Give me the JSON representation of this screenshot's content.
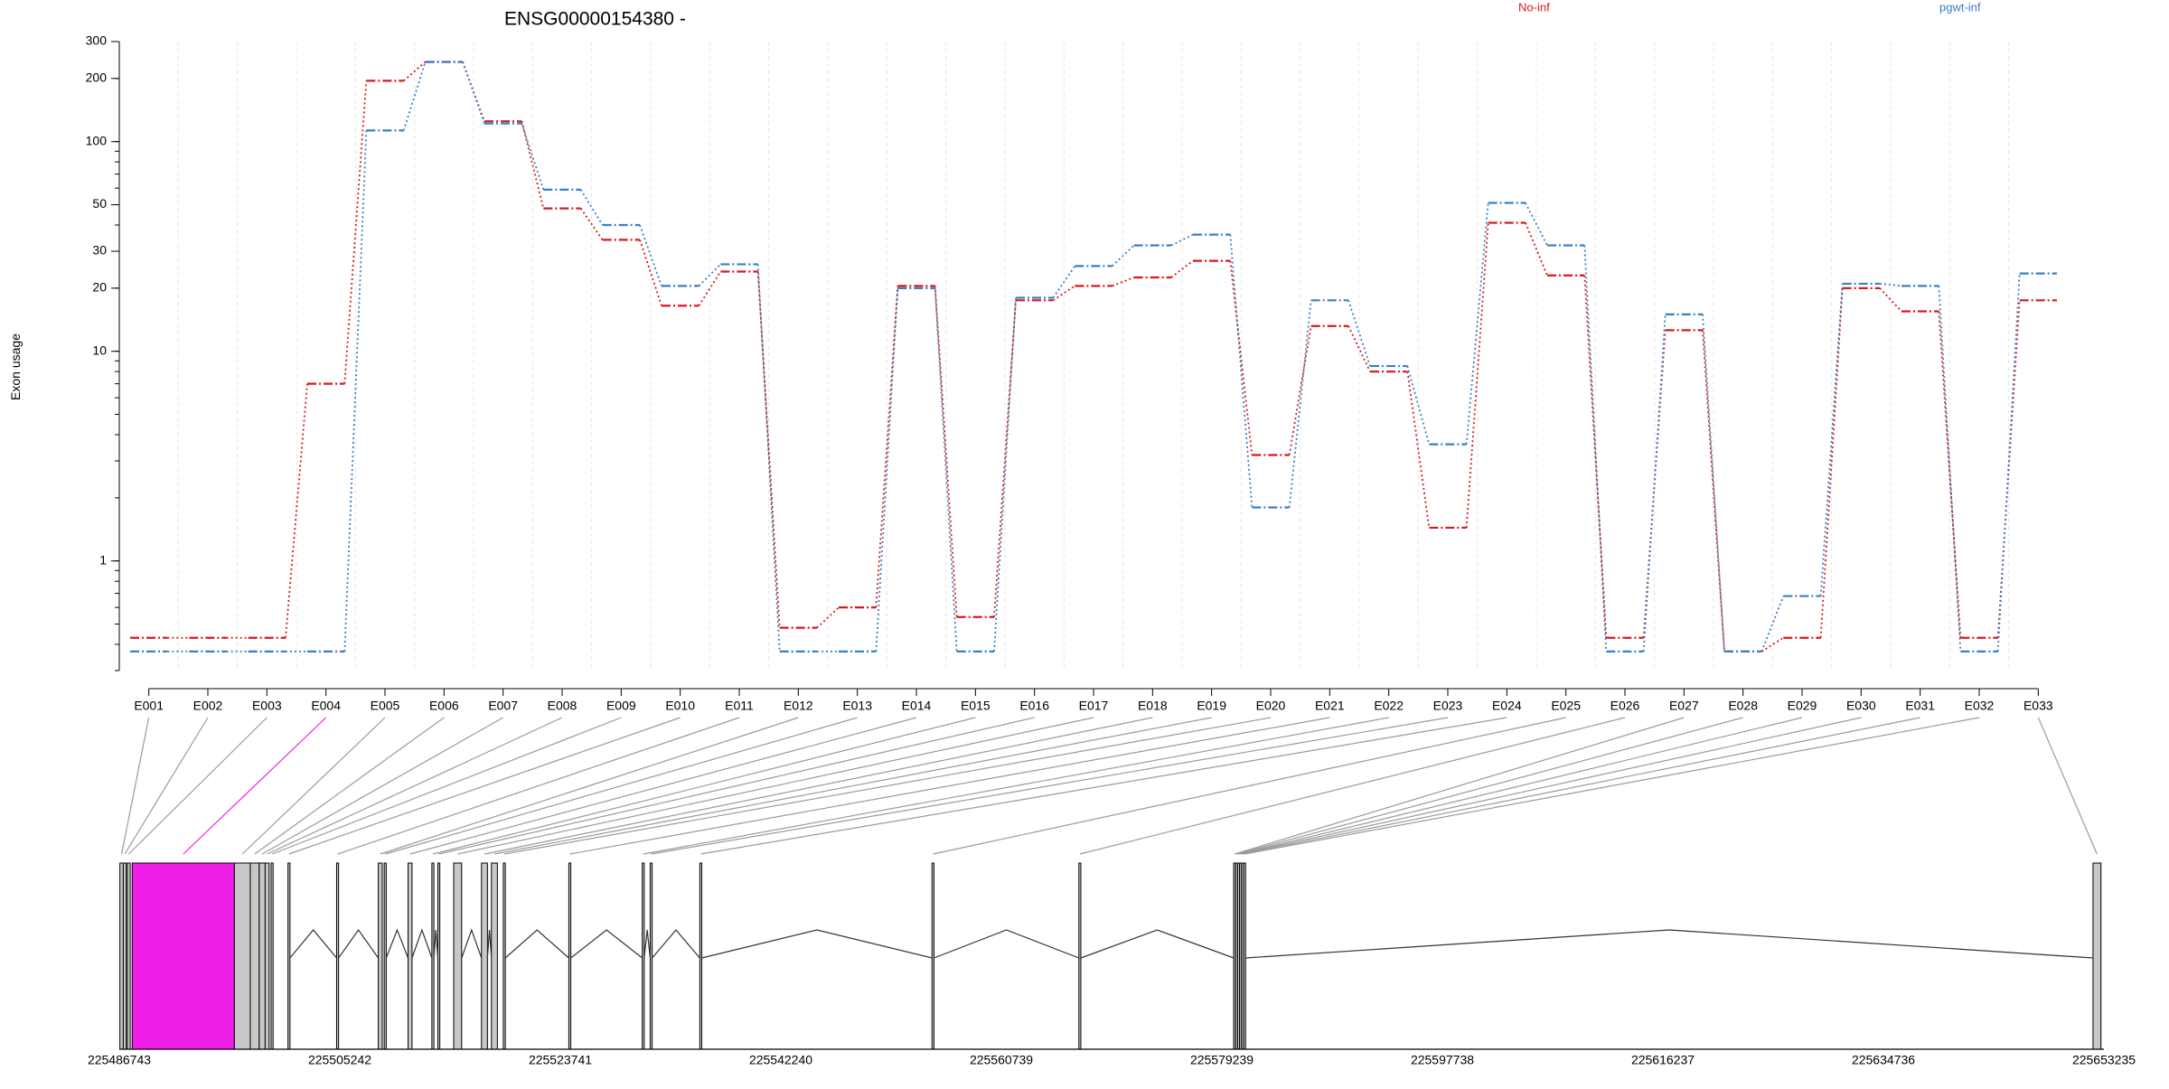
{
  "chart_data": {
    "type": "line",
    "title": "ENSG00000154380 -",
    "xlabel": "",
    "ylabel": "Exon usage",
    "yscale": "log",
    "ylim": [
      0.3,
      300
    ],
    "y_ticks": [
      1,
      10,
      20,
      30,
      50,
      100,
      200,
      300
    ],
    "grid": "vertical dashed per exon",
    "legend_position": "top",
    "categories": [
      "E001",
      "E002",
      "E003",
      "E004",
      "E005",
      "E006",
      "E007",
      "E008",
      "E009",
      "E010",
      "E011",
      "E012",
      "E013",
      "E014",
      "E015",
      "E016",
      "E017",
      "E018",
      "E019",
      "E020",
      "E021",
      "E022",
      "E023",
      "E024",
      "E025",
      "E026",
      "E027",
      "E028",
      "E029",
      "E030",
      "E031",
      "E032",
      "E033"
    ],
    "series": [
      {
        "name": "No-inf",
        "color": "#d7191c",
        "values": [
          0.43,
          0.43,
          0.43,
          7.0,
          195,
          240,
          125,
          48,
          34,
          16.5,
          24,
          0.48,
          0.6,
          20.5,
          0.54,
          17.5,
          20.5,
          22.5,
          27,
          3.2,
          13.2,
          8.0,
          1.44,
          41,
          23,
          0.43,
          12.6,
          0.37,
          0.43,
          20,
          15.5,
          0.43,
          17.5
        ]
      },
      {
        "name": "pgwt-inf",
        "color": "#3a7fc1",
        "values": [
          0.37,
          0.37,
          0.37,
          0.37,
          113,
          240,
          122,
          59,
          40,
          20.5,
          26,
          0.37,
          0.37,
          20,
          0.37,
          18,
          25.5,
          32,
          36,
          1.8,
          17.5,
          8.5,
          3.6,
          51,
          32,
          0.37,
          15,
          0.37,
          0.68,
          21,
          20.5,
          0.37,
          23.5
        ]
      }
    ],
    "gene_model": {
      "genomic_ticks": [
        "225486743",
        "225505242",
        "225523741",
        "225542240",
        "225560739",
        "225579239",
        "225597738",
        "225616237",
        "225634736",
        "225653235"
      ],
      "highlighted_exon": "E004",
      "highlight_color": "#f01fe8",
      "exon_color": "#c8c8c8"
    }
  }
}
